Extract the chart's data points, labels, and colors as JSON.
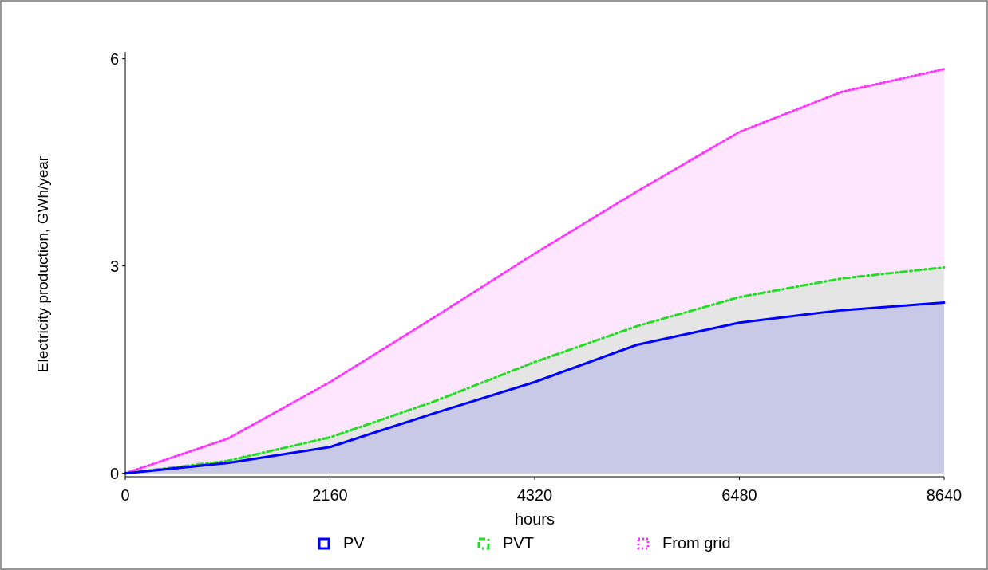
{
  "chart_data": {
    "type": "area",
    "xlabel": "hours",
    "ylabel": "Electricity production, GWh/year",
    "x": [
      0,
      1080,
      2160,
      3240,
      4320,
      5400,
      6480,
      7560,
      8640
    ],
    "xlim": [
      0,
      8640
    ],
    "xticks": [
      0,
      2160,
      4320,
      6480,
      8640
    ],
    "ylim": [
      -0.05,
      6.1
    ],
    "yticks": [
      0,
      3,
      6
    ],
    "grid": false,
    "legend": "bottom",
    "series": [
      {
        "name": "From grid",
        "color": "#ff33ff",
        "line_style": "dotted",
        "values": [
          0,
          0.5,
          1.32,
          2.24,
          3.18,
          4.08,
          4.94,
          5.52,
          5.85
        ]
      },
      {
        "name": "PVT",
        "color": "#22dd22",
        "line_style": "dashdot",
        "values": [
          0,
          0.18,
          0.52,
          1.03,
          1.61,
          2.13,
          2.55,
          2.82,
          2.98
        ]
      },
      {
        "name": "PV",
        "color": "#0000ff",
        "line_style": "solid",
        "values": [
          0,
          0.15,
          0.38,
          0.86,
          1.32,
          1.86,
          2.18,
          2.36,
          2.47
        ]
      }
    ]
  }
}
